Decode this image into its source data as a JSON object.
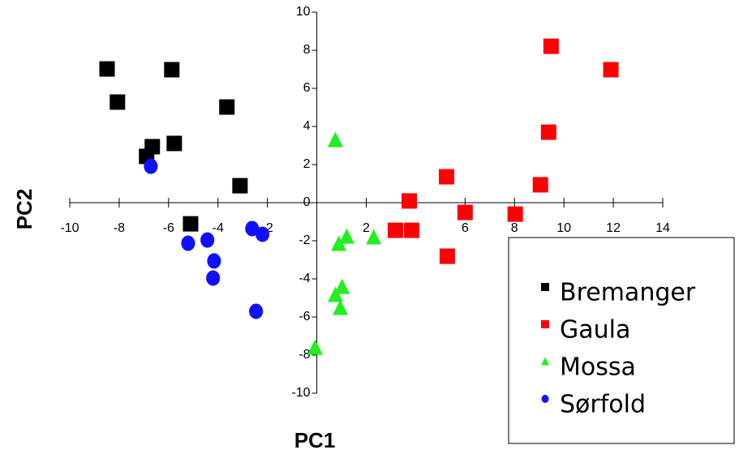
{
  "chart_data": {
    "type": "scatter",
    "x_label": "PC1",
    "y_label": "PC2",
    "xlim": [
      -10,
      14
    ],
    "ylim": [
      -10,
      10
    ],
    "xticks": [
      -10,
      -8,
      -6,
      -4,
      -2,
      2,
      4,
      6,
      8,
      10,
      12,
      14
    ],
    "yticks": [
      10,
      8,
      6,
      4,
      2,
      0,
      -2,
      -4,
      -6,
      -8,
      -10
    ],
    "legend": "bottom-right",
    "series": [
      {
        "name": "Bremanger",
        "color": "#000000",
        "marker": "square",
        "x": [
          -8.49,
          -8.07,
          -5.87,
          -3.64,
          -6.66,
          -6.89,
          -5.77,
          -3.11,
          -5.11
        ],
        "y": [
          7.02,
          5.28,
          6.98,
          5.02,
          2.94,
          2.43,
          3.11,
          0.89,
          -1.11
        ]
      },
      {
        "name": "Gaula",
        "color": "#ff0000",
        "marker": "square",
        "x": [
          9.48,
          11.9,
          9.38,
          9.05,
          5.25,
          3.74,
          3.18,
          3.84,
          6.0,
          8.03,
          5.28
        ],
        "y": [
          8.21,
          6.98,
          3.7,
          0.94,
          1.36,
          0.09,
          -1.45,
          -1.45,
          -0.51,
          -0.6,
          -2.81
        ]
      },
      {
        "name": "Mossa",
        "color": "#22ee22",
        "marker": "triangle",
        "x": [
          0.75,
          1.21,
          2.3,
          0.89,
          1.02,
          0.75,
          0.95,
          -0.07
        ],
        "y": [
          3.28,
          -1.79,
          -1.83,
          -2.17,
          -4.43,
          -4.85,
          -5.53,
          -7.62
        ]
      },
      {
        "name": "Sørfold",
        "color": "#1010ff",
        "marker": "circle",
        "x": [
          -6.72,
          -5.21,
          -4.43,
          -4.16,
          -4.2,
          -2.62,
          -2.2,
          -2.46
        ],
        "y": [
          1.91,
          -2.13,
          -1.96,
          -3.06,
          -3.96,
          -1.36,
          -1.66,
          -5.7
        ]
      }
    ]
  }
}
